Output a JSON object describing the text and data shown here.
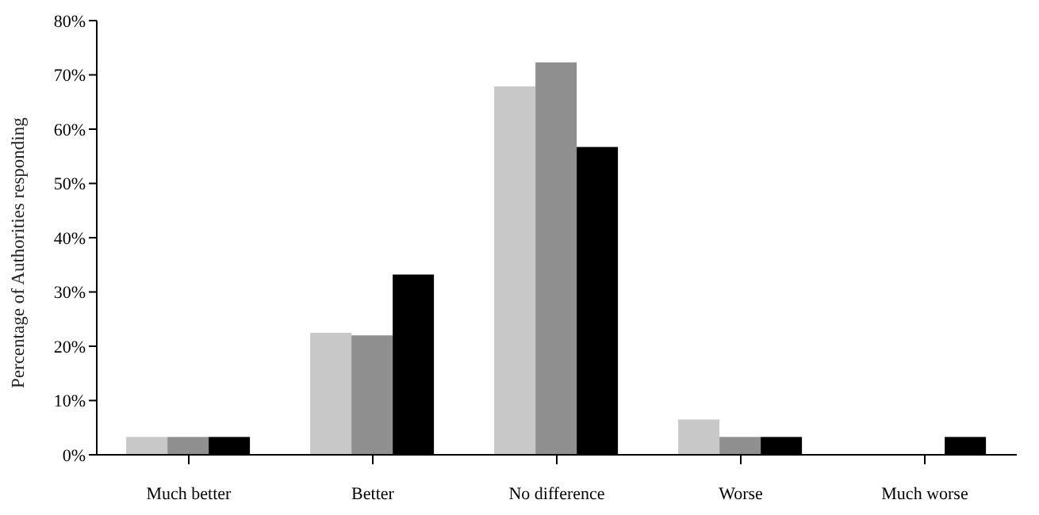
{
  "chart_data": {
    "type": "bar",
    "ylabel": "Percentage of Authorities responding",
    "categories": [
      "Much better",
      "Better",
      "No difference",
      "Worse",
      "Much worse"
    ],
    "series": [
      {
        "color": "#c8c8c8",
        "values": [
          3.3,
          22.5,
          67.9,
          6.5,
          0
        ]
      },
      {
        "color": "#8f8f8f",
        "values": [
          3.3,
          22,
          72.3,
          3.3,
          0
        ]
      },
      {
        "color": "#000000",
        "values": [
          3.3,
          33.2,
          56.7,
          3.3,
          3.3
        ]
      }
    ],
    "ylim": [
      0,
      80
    ],
    "yticks": [
      {
        "value": 0,
        "label": "0%"
      },
      {
        "value": 10,
        "label": "10%"
      },
      {
        "value": 20,
        "label": "20%"
      },
      {
        "value": 30,
        "label": "30%"
      },
      {
        "value": 40,
        "label": "40%"
      },
      {
        "value": 50,
        "label": "50%"
      },
      {
        "value": 60,
        "label": "60%"
      },
      {
        "value": 70,
        "label": "70%"
      },
      {
        "value": 80,
        "label": "80%"
      }
    ]
  }
}
